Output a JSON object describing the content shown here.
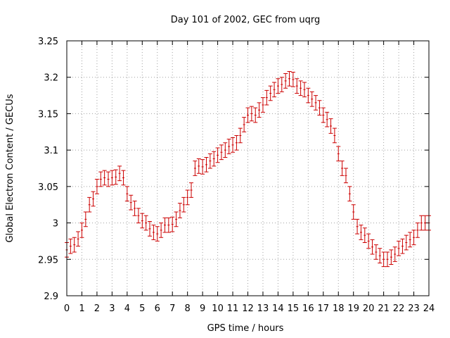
{
  "chart_data": {
    "type": "scatter",
    "title": "Day 101 of 2002, GEC from uqrg",
    "xlabel": "GPS time / hours",
    "ylabel": "Global Electron Content / GECUs",
    "xlim": [
      0,
      24
    ],
    "ylim": [
      2.9,
      3.25
    ],
    "xticks": [
      0,
      1,
      2,
      3,
      4,
      5,
      6,
      7,
      8,
      9,
      10,
      11,
      12,
      13,
      14,
      15,
      16,
      17,
      18,
      19,
      20,
      21,
      22,
      23,
      24
    ],
    "yticks": [
      2.9,
      2.95,
      3,
      3.05,
      3.1,
      3.15,
      3.2,
      3.25
    ],
    "ytick_labels": [
      "2.9",
      "2.95",
      "3",
      "3.05",
      "3.1",
      "3.15",
      "3.2",
      "3.25"
    ],
    "grid": true,
    "legend": false,
    "error_bar": 0.01,
    "color": "#cc0000",
    "series": [
      {
        "x": [
          0.0,
          0.25,
          0.5,
          0.75,
          1.0,
          1.25,
          1.5,
          1.75,
          2.0,
          2.25,
          2.5,
          2.75,
          3.0,
          3.25,
          3.5,
          3.75,
          4.0,
          4.25,
          4.5,
          4.75,
          5.0,
          5.25,
          5.5,
          5.75,
          6.0,
          6.25,
          6.5,
          6.75,
          7.0,
          7.25,
          7.5,
          7.75,
          8.0,
          8.25,
          8.5,
          8.75,
          9.0,
          9.25,
          9.5,
          9.75,
          10.0,
          10.25,
          10.5,
          10.75,
          11.0,
          11.25,
          11.5,
          11.75,
          12.0,
          12.25,
          12.5,
          12.75,
          13.0,
          13.25,
          13.5,
          13.75,
          14.0,
          14.25,
          14.5,
          14.75,
          15.0,
          15.25,
          15.5,
          15.75,
          16.0,
          16.25,
          16.5,
          16.75,
          17.0,
          17.25,
          17.5,
          17.75,
          18.0,
          18.25,
          18.5,
          18.75,
          19.0,
          19.25,
          19.5,
          19.75,
          20.0,
          20.25,
          20.5,
          20.75,
          21.0,
          21.25,
          21.5,
          21.75,
          22.0,
          22.25,
          22.5,
          22.75,
          23.0,
          23.25,
          23.5,
          23.75,
          24.0
        ],
        "y": [
          2.963,
          2.968,
          2.97,
          2.978,
          2.99,
          3.005,
          3.025,
          3.033,
          3.05,
          3.06,
          3.062,
          3.06,
          3.062,
          3.063,
          3.068,
          3.062,
          3.04,
          3.028,
          3.02,
          3.01,
          3.003,
          3.0,
          2.992,
          2.987,
          2.985,
          2.99,
          2.997,
          2.997,
          2.998,
          3.005,
          3.017,
          3.025,
          3.035,
          3.045,
          3.075,
          3.078,
          3.077,
          3.08,
          3.085,
          3.088,
          3.093,
          3.097,
          3.1,
          3.105,
          3.107,
          3.11,
          3.12,
          3.135,
          3.148,
          3.15,
          3.148,
          3.155,
          3.162,
          3.172,
          3.178,
          3.183,
          3.188,
          3.19,
          3.195,
          3.198,
          3.197,
          3.188,
          3.185,
          3.183,
          3.175,
          3.17,
          3.165,
          3.158,
          3.148,
          3.142,
          3.133,
          3.12,
          3.095,
          3.075,
          3.065,
          3.04,
          3.015,
          2.995,
          2.987,
          2.983,
          2.975,
          2.967,
          2.96,
          2.955,
          2.95,
          2.95,
          2.953,
          2.957,
          2.965,
          2.968,
          2.973,
          2.977,
          2.98,
          2.99,
          3.0,
          3.0,
          3.0
        ]
      }
    ]
  }
}
